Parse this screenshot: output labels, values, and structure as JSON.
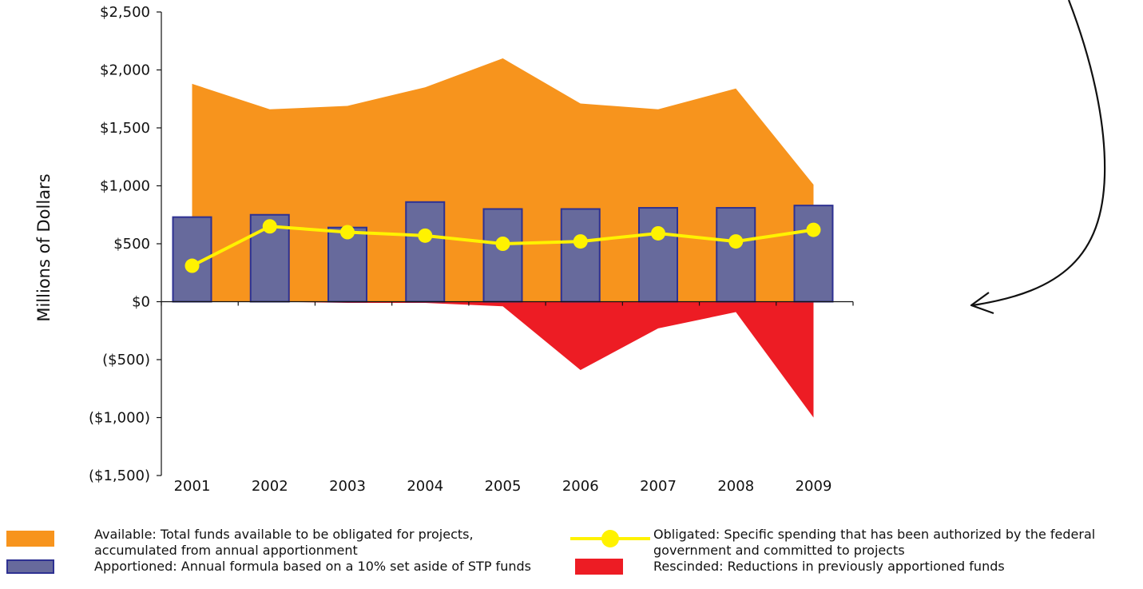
{
  "chart_data": {
    "type": "bar",
    "categories": [
      "2001",
      "2002",
      "2003",
      "2004",
      "2005",
      "2006",
      "2007",
      "2008",
      "2009"
    ],
    "ylabel": "Millions of Dollars",
    "xlabel": "",
    "ylim": [
      -1500,
      2500
    ],
    "yticks": [
      2500,
      2000,
      1500,
      1000,
      500,
      0,
      -500,
      -1000,
      -1500
    ],
    "ytick_labels": [
      "$2,500",
      "$2,000",
      "$1,500",
      "$1,000",
      "$500",
      "$0",
      "($500)",
      "($1,000)",
      "($1,500)"
    ],
    "series": [
      {
        "name": "Available",
        "type": "area",
        "color": "#F7941D",
        "values": [
          1880,
          1660,
          1690,
          1850,
          2100,
          1710,
          1660,
          1840,
          1010
        ]
      },
      {
        "name": "Apportioned",
        "type": "bar",
        "color": "#676A9C",
        "edge": "#2E3192",
        "values": [
          730,
          750,
          640,
          860,
          800,
          800,
          810,
          810,
          830
        ]
      },
      {
        "name": "Obligated",
        "type": "line",
        "color": "#FFF200",
        "values": [
          310,
          650,
          600,
          570,
          500,
          520,
          590,
          520,
          620
        ]
      },
      {
        "name": "Rescinded",
        "type": "area",
        "color": "#ED1C24",
        "values": [
          0,
          0,
          -10,
          -10,
          -40,
          -590,
          -230,
          -90,
          -1000
        ]
      }
    ],
    "grid": false
  },
  "legend": {
    "available": "Available: Total funds available to be obligated for projects, accumulated from annual apportionment",
    "apportioned": "Apportioned: Annual formula based on a 10% set aside of STP funds",
    "obligated": "Obligated: Specific spending that has been authorized by the federal government and committed to projects",
    "rescinded": "Rescinded: Reductions in previously apportioned funds"
  }
}
